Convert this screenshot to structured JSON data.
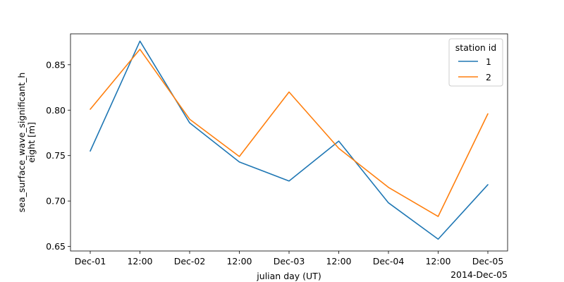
{
  "chart_data": {
    "type": "line",
    "xlabel": "julian day (UT)",
    "ylabel_lines": [
      "sea_surface_wave_significant_h",
      "eight [m]"
    ],
    "x": [
      "2014-12-01T00:00",
      "2014-12-01T12:00",
      "2014-12-02T00:00",
      "2014-12-02T12:00",
      "2014-12-03T00:00",
      "2014-12-03T12:00",
      "2014-12-04T00:00",
      "2014-12-04T12:00",
      "2014-12-05T00:00"
    ],
    "x_tick_labels": [
      "Dec-01",
      "12:00",
      "Dec-02",
      "12:00",
      "Dec-03",
      "12:00",
      "Dec-04",
      "12:00",
      "Dec-05"
    ],
    "x_offset_label": "2014-Dec-05",
    "y_ticks": [
      0.65,
      0.7,
      0.75,
      0.8,
      0.85
    ],
    "y_tick_labels": [
      "0.65",
      "0.70",
      "0.75",
      "0.80",
      "0.85"
    ],
    "ylim": [
      0.645,
      0.884
    ],
    "series": [
      {
        "name": "1",
        "color": "#1f77b4",
        "values": [
          0.755,
          0.876,
          0.786,
          0.743,
          0.722,
          0.766,
          0.698,
          0.658,
          0.718
        ]
      },
      {
        "name": "2",
        "color": "#ff7f0e",
        "values": [
          0.801,
          0.867,
          0.79,
          0.749,
          0.82,
          0.758,
          0.715,
          0.683,
          0.796
        ]
      }
    ],
    "legend": {
      "title": "station id",
      "placement": "top-right"
    },
    "grid": false
  }
}
